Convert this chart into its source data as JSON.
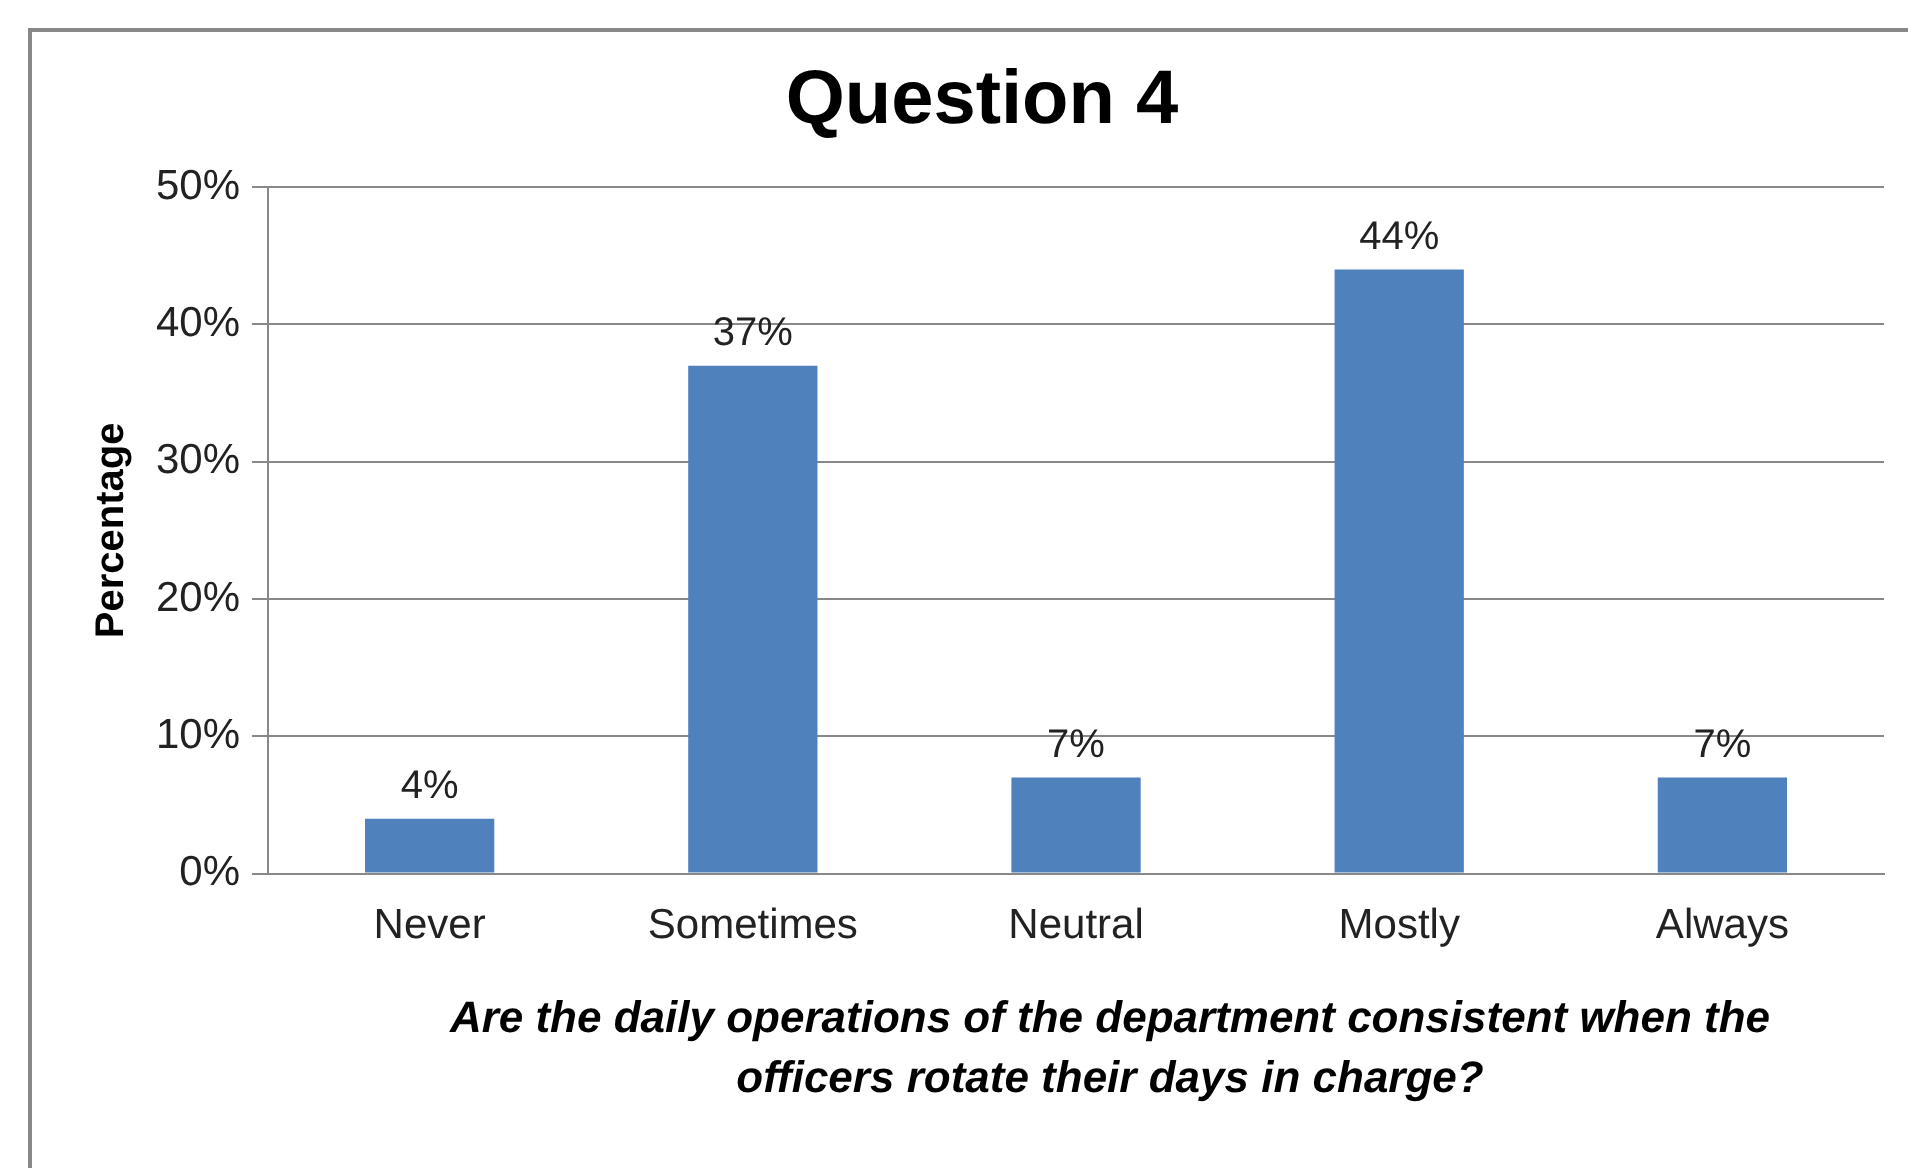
{
  "chart_data": {
    "type": "bar",
    "title": "Question 4",
    "ylabel": "Percentage",
    "xlabel": "Are the daily operations of the department consistent when the officers rotate their days in charge?",
    "categories": [
      "Never",
      "Sometimes",
      "Neutral",
      "Mostly",
      "Always"
    ],
    "values": [
      4,
      37,
      7,
      44,
      7
    ],
    "value_labels": [
      "4%",
      "37%",
      "7%",
      "44%",
      "7%"
    ],
    "color": "#4f81bd",
    "ylim": [
      0,
      50
    ],
    "yticks": [
      {
        "value": 0,
        "label": "0%"
      },
      {
        "value": 10,
        "label": "10%"
      },
      {
        "value": 20,
        "label": "20%"
      },
      {
        "value": 30,
        "label": "30%"
      },
      {
        "value": 40,
        "label": "40%"
      },
      {
        "value": 50,
        "label": "50%"
      }
    ],
    "grid": "y",
    "legend": false
  }
}
